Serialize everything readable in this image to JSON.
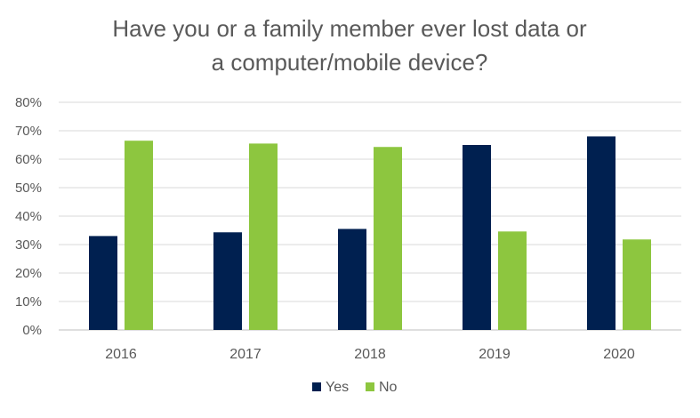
{
  "chart_data": {
    "type": "bar",
    "title_lines": [
      "Have you or a family member ever lost data or",
      "a computer/mobile device?"
    ],
    "xlabel": "",
    "ylabel": "",
    "categories": [
      "2016",
      "2017",
      "2018",
      "2019",
      "2020"
    ],
    "series": [
      {
        "name": "Yes",
        "color": "#002050",
        "values": [
          33,
          34.3,
          35.5,
          65,
          68
        ]
      },
      {
        "name": "No",
        "color": "#8DC63F",
        "values": [
          66.5,
          65.5,
          64.3,
          34.6,
          31.8
        ]
      }
    ],
    "ylim": [
      0,
      80
    ],
    "yticks": [
      0,
      10,
      20,
      30,
      40,
      50,
      60,
      70,
      80
    ],
    "ytick_labels": [
      "0%",
      "10%",
      "20%",
      "30%",
      "40%",
      "50%",
      "60%",
      "70%",
      "80%"
    ],
    "grid": true,
    "legend_position": "bottom"
  }
}
